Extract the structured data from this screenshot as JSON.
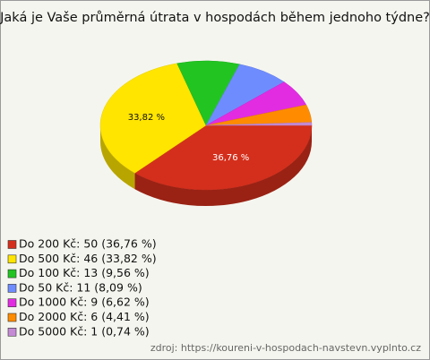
{
  "chart_data": {
    "type": "pie",
    "title": "Jaká je Vaše průměrná útrata v hospodách během jednoho týdne?",
    "categories": [
      "Do 200 Kč",
      "Do 500 Kč",
      "Do 100 Kč",
      "Do 50 Kč",
      "Do 1000 Kč",
      "Do 2000 Kč",
      "Do 5000 Kč"
    ],
    "values": [
      36.76,
      33.82,
      9.56,
      8.09,
      6.62,
      4.41,
      0.74
    ],
    "value_labels": [
      "36,76 %",
      "33,82 %",
      null,
      null,
      null,
      null,
      null
    ],
    "legend_labels": [
      "Do 200 Kč: 50 (36,76 %)",
      "Do 500 Kč: 46 (33,82 %)",
      "Do 100 Kč: 13 (9,56 %)",
      "Do 50 Kč: 11 (8,09 %)",
      "Do 1000 Kč: 9 (6,62 %)",
      "Do 2000 Kč: 6 (4,41 %)",
      "Do 5000 Kč: 1 (0,74 %)"
    ],
    "colors": [
      "#d42f1c",
      "#ffe500",
      "#22c422",
      "#6f8cff",
      "#e22ce2",
      "#ff8c00",
      "#c48ad4"
    ],
    "source": "zdroj: https://koureni-v-hospodach-navstevn.vyplnto.cz"
  }
}
